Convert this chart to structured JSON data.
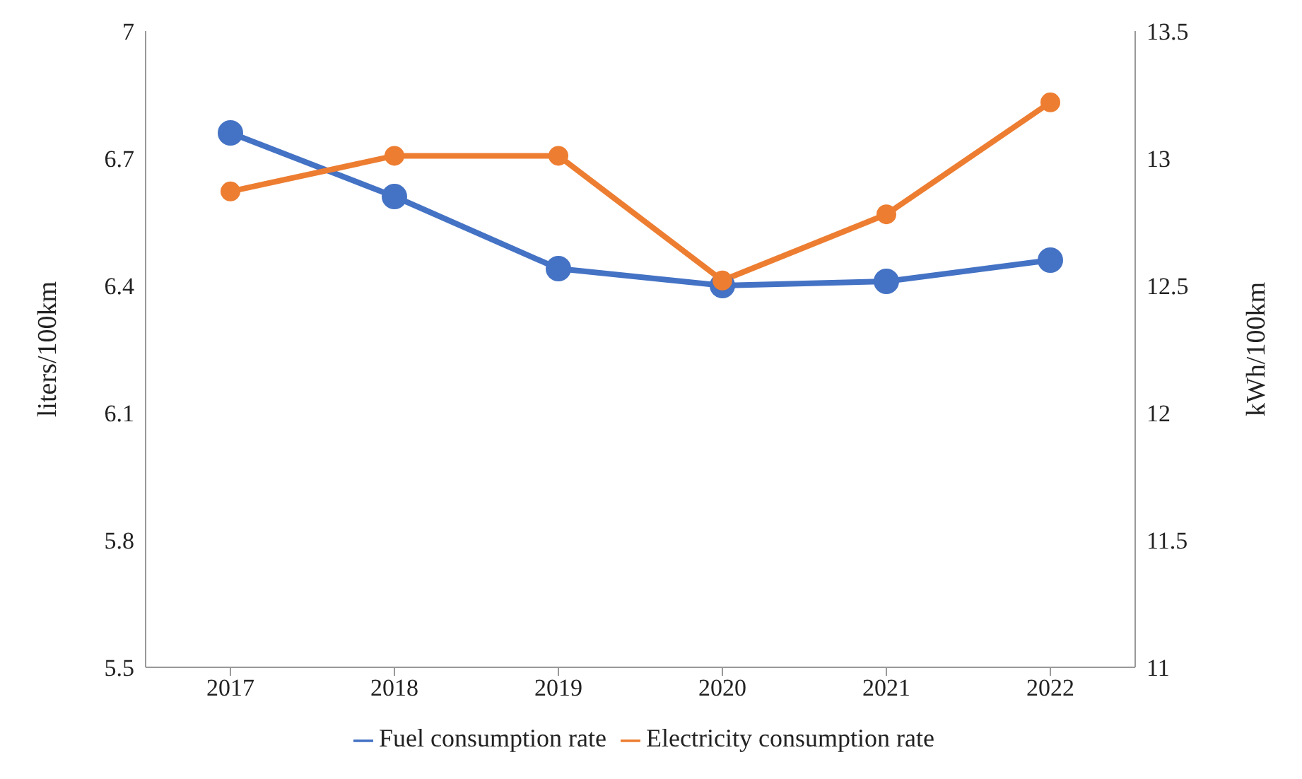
{
  "chart_data": {
    "type": "line",
    "categories": [
      "2017",
      "2018",
      "2019",
      "2020",
      "2021",
      "2022"
    ],
    "series": [
      {
        "name": "Fuel consumption rate",
        "color": "#4472c4",
        "values": [
          6.76,
          6.61,
          6.44,
          6.4,
          6.41,
          6.46
        ]
      },
      {
        "name": "Electricity consumption rate",
        "color": "#ed7d31",
        "values": [
          12.87,
          13.01,
          13.01,
          12.52,
          12.78,
          13.22
        ],
        "axis": "y2"
      }
    ],
    "ylabel": "liters/100km",
    "y2label": "kWh/100km",
    "ylim": [
      5.5,
      7
    ],
    "yticks": [
      5.5,
      5.8,
      6.1,
      6.4,
      6.7,
      7
    ],
    "y2lim": [
      11,
      13.5
    ],
    "y2ticks": [
      11,
      11.5,
      12,
      12.5,
      13,
      13.5
    ],
    "grid": false,
    "legend": "bottom",
    "marker": "circle",
    "line_style": "solid"
  }
}
